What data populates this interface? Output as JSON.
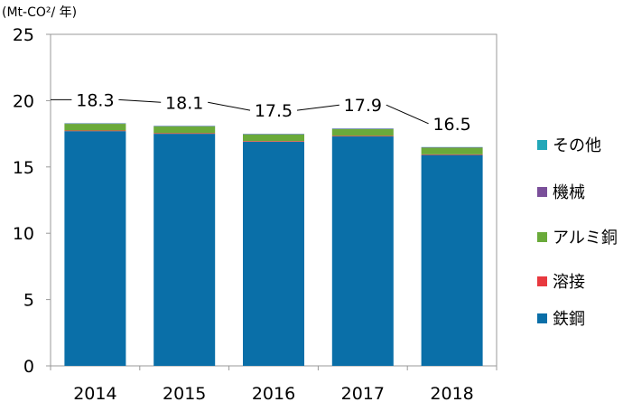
{
  "chart_data": {
    "type": "bar",
    "stacked": true,
    "unit_label": "(Mt-CO²/ 年)",
    "categories": [
      "2014",
      "2015",
      "2016",
      "2017",
      "2018"
    ],
    "series": [
      {
        "name": "鉄鋼",
        "color": "#0a6fa8",
        "values": [
          17.7,
          17.5,
          16.9,
          17.3,
          15.9
        ]
      },
      {
        "name": "溶接",
        "color": "#e8393f",
        "values": [
          0.05,
          0.05,
          0.05,
          0.05,
          0.05
        ]
      },
      {
        "name": "アルミ銅",
        "color": "#6aaa3a",
        "values": [
          0.5,
          0.5,
          0.5,
          0.5,
          0.5
        ]
      },
      {
        "name": "機械",
        "color": "#7a4f9a",
        "values": [
          0.03,
          0.03,
          0.03,
          0.03,
          0.03
        ]
      },
      {
        "name": "その他",
        "color": "#22a7b8",
        "values": [
          0.02,
          0.02,
          0.02,
          0.02,
          0.02
        ]
      }
    ],
    "totals": [
      "18.3",
      "18.1",
      "17.5",
      "17.9",
      "16.5"
    ],
    "total_values": [
      18.3,
      18.1,
      17.5,
      17.9,
      16.5
    ],
    "ylim": [
      0,
      25
    ],
    "yticks": [
      0,
      5,
      10,
      15,
      20,
      25
    ],
    "grid": false,
    "legend_position": "right",
    "legend_order": [
      "その他",
      "機械",
      "アルミ銅",
      "溶接",
      "鉄鋼"
    ]
  }
}
